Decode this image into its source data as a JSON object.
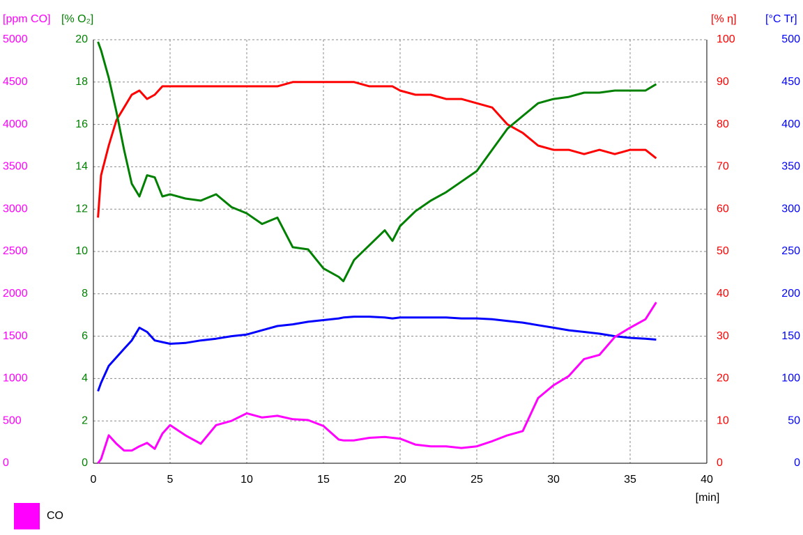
{
  "chart_data": {
    "type": "line",
    "x_label": "[min]",
    "xlim": [
      0,
      40
    ],
    "xticks": [
      0,
      5,
      10,
      15,
      20,
      25,
      30,
      35,
      40
    ],
    "grid": true,
    "axes": [
      {
        "label": "[ppm CO]",
        "color": "#ff00ff",
        "side": "left",
        "lim": [
          0,
          5000
        ],
        "ticks": [
          0,
          500,
          1000,
          1500,
          2000,
          2500,
          3000,
          3500,
          4000,
          4500,
          5000
        ]
      },
      {
        "label": "[% O₂]",
        "color": "#008000",
        "side": "left",
        "lim": [
          0,
          20
        ],
        "ticks": [
          0,
          2,
          4,
          6,
          8,
          10,
          12,
          14,
          16,
          18,
          20
        ]
      },
      {
        "label": "[% η]",
        "color": "#ff0000",
        "side": "right",
        "lim": [
          0,
          100
        ],
        "ticks": [
          0,
          10,
          20,
          30,
          40,
          50,
          60,
          70,
          80,
          90,
          100
        ]
      },
      {
        "label": "[°C Tr]",
        "color": "#0000ff",
        "side": "right",
        "lim": [
          0,
          500
        ],
        "ticks": [
          0,
          50,
          100,
          150,
          200,
          250,
          300,
          350,
          400,
          450,
          500
        ]
      }
    ],
    "x": [
      0.3,
      0.5,
      1,
      1.5,
      2,
      2.5,
      3,
      3.5,
      4,
      4.5,
      5,
      6,
      7,
      8,
      9,
      10,
      11,
      12,
      13,
      14,
      15,
      16,
      16.3,
      17,
      18,
      19,
      19.5,
      20,
      21,
      22,
      23,
      24,
      25,
      26,
      27,
      28,
      29,
      30,
      31,
      32,
      33,
      34,
      35,
      36,
      36.7
    ],
    "series": [
      {
        "name": "CO",
        "color": "#ff00ff",
        "axis": 0,
        "values": [
          0,
          50,
          330,
          230,
          150,
          150,
          200,
          240,
          170,
          350,
          450,
          330,
          230,
          450,
          500,
          590,
          540,
          560,
          520,
          510,
          440,
          280,
          270,
          270,
          300,
          310,
          300,
          290,
          220,
          200,
          200,
          180,
          200,
          260,
          330,
          380,
          770,
          920,
          1030,
          1230,
          1280,
          1490,
          1600,
          1700,
          1900
        ]
      },
      {
        "color": "#008000",
        "axis": 1,
        "values": [
          19.9,
          19.5,
          18.2,
          16.6,
          14.8,
          13.2,
          12.6,
          13.6,
          13.5,
          12.6,
          12.7,
          12.5,
          12.4,
          12.7,
          12.1,
          11.8,
          11.3,
          11.6,
          10.2,
          10.1,
          9.2,
          8.8,
          8.6,
          9.6,
          10.3,
          11.0,
          10.5,
          11.2,
          11.9,
          12.4,
          12.8,
          13.3,
          13.8,
          14.8,
          15.8,
          16.4,
          17.0,
          17.2,
          17.3,
          17.5,
          17.5,
          17.6,
          17.6,
          17.6,
          17.9
        ]
      },
      {
        "color": "#ff0000",
        "axis": 2,
        "values": [
          58,
          68,
          75,
          81,
          84,
          87,
          88,
          86,
          87,
          89,
          89,
          89,
          89,
          89,
          89,
          89,
          89,
          89,
          90,
          90,
          90,
          90,
          90,
          90,
          89,
          89,
          89,
          88,
          87,
          87,
          86,
          86,
          85,
          84,
          80,
          78,
          75,
          74,
          74,
          73,
          74,
          73,
          74,
          74,
          72
        ]
      },
      {
        "color": "#0000ff",
        "axis": 3,
        "values": [
          85,
          95,
          115,
          125,
          135,
          145,
          160,
          155,
          145,
          143,
          141,
          142,
          145,
          147,
          150,
          152,
          157,
          162,
          164,
          167,
          169,
          171,
          172,
          173,
          173,
          172,
          171,
          172,
          172,
          172,
          172,
          171,
          171,
          170,
          168,
          166,
          163,
          160,
          157,
          155,
          153,
          150,
          148,
          147,
          146
        ]
      }
    ]
  }
}
